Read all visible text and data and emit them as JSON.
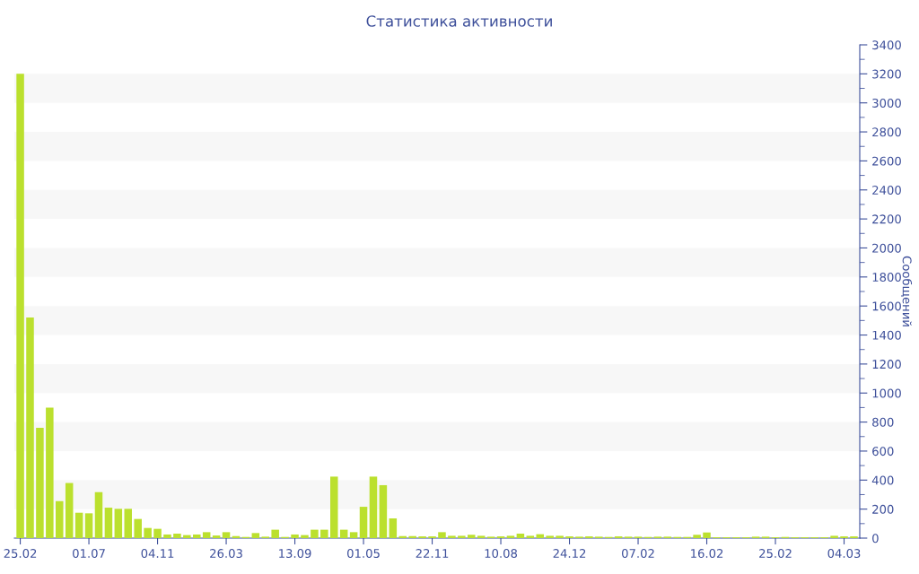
{
  "chart_data": {
    "type": "bar",
    "title": "Статистика активности",
    "ylabel": "Сообщений",
    "categories": [
      "25.02",
      null,
      null,
      null,
      null,
      null,
      null,
      "01.07",
      null,
      null,
      null,
      null,
      null,
      null,
      "04.11",
      null,
      null,
      null,
      null,
      null,
      null,
      "26.03",
      null,
      null,
      null,
      null,
      null,
      null,
      "13.09",
      null,
      null,
      null,
      null,
      null,
      null,
      "01.05",
      null,
      null,
      null,
      null,
      null,
      null,
      "22.11",
      null,
      null,
      null,
      null,
      null,
      null,
      "10.08",
      null,
      null,
      null,
      null,
      null,
      null,
      "24.12",
      null,
      null,
      null,
      null,
      null,
      null,
      "07.02",
      null,
      null,
      null,
      null,
      null,
      null,
      "16.02",
      null,
      null,
      null,
      null,
      null,
      null,
      "25.02",
      null,
      null,
      null,
      null,
      null,
      null,
      "04.03",
      null
    ],
    "values": [
      3200,
      1520,
      760,
      900,
      255,
      380,
      175,
      171,
      317,
      210,
      202,
      202,
      132,
      70,
      64,
      25,
      31,
      21,
      25,
      41,
      18,
      41,
      14,
      8,
      35,
      10,
      58,
      8,
      25,
      21,
      58,
      58,
      424,
      58,
      41,
      216,
      424,
      365,
      136,
      14,
      14,
      12,
      12,
      41,
      16,
      16,
      23,
      16,
      10,
      12,
      16,
      31,
      16,
      27,
      16,
      16,
      12,
      10,
      12,
      10,
      8,
      12,
      10,
      10,
      8,
      10,
      10,
      8,
      8,
      23,
      39,
      6,
      6,
      6,
      6,
      10,
      10,
      6,
      8,
      6,
      6,
      6,
      6,
      16,
      12,
      12
    ],
    "color": "#bbe02e",
    "ylim": [
      0,
      3400
    ],
    "yticks": [
      0,
      200,
      400,
      600,
      800,
      1000,
      1200,
      1400,
      1600,
      1800,
      2000,
      2200,
      2400,
      2600,
      2800,
      3000,
      3200,
      3400
    ]
  }
}
